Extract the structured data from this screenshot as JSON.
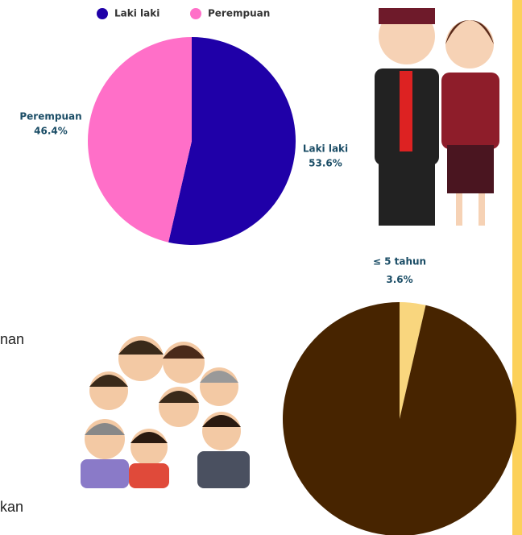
{
  "chart_data": [
    {
      "type": "pie",
      "categories": [
        "Laki laki",
        "Perempuan"
      ],
      "values": [
        53.6,
        46.4
      ],
      "value_labels": [
        "53.6%",
        "46.4%"
      ],
      "colors": [
        "#1f00a8",
        "#ff6fc8"
      ],
      "legend": "top"
    },
    {
      "type": "pie",
      "categories": [
        "≤ 5 tahun",
        null
      ],
      "values": [
        3.6,
        96.4
      ],
      "value_labels": [
        "3.6%",
        null
      ],
      "colors": [
        "#f9d67e",
        "#472400"
      ]
    }
  ],
  "fragments": [
    "nan",
    "kan"
  ]
}
